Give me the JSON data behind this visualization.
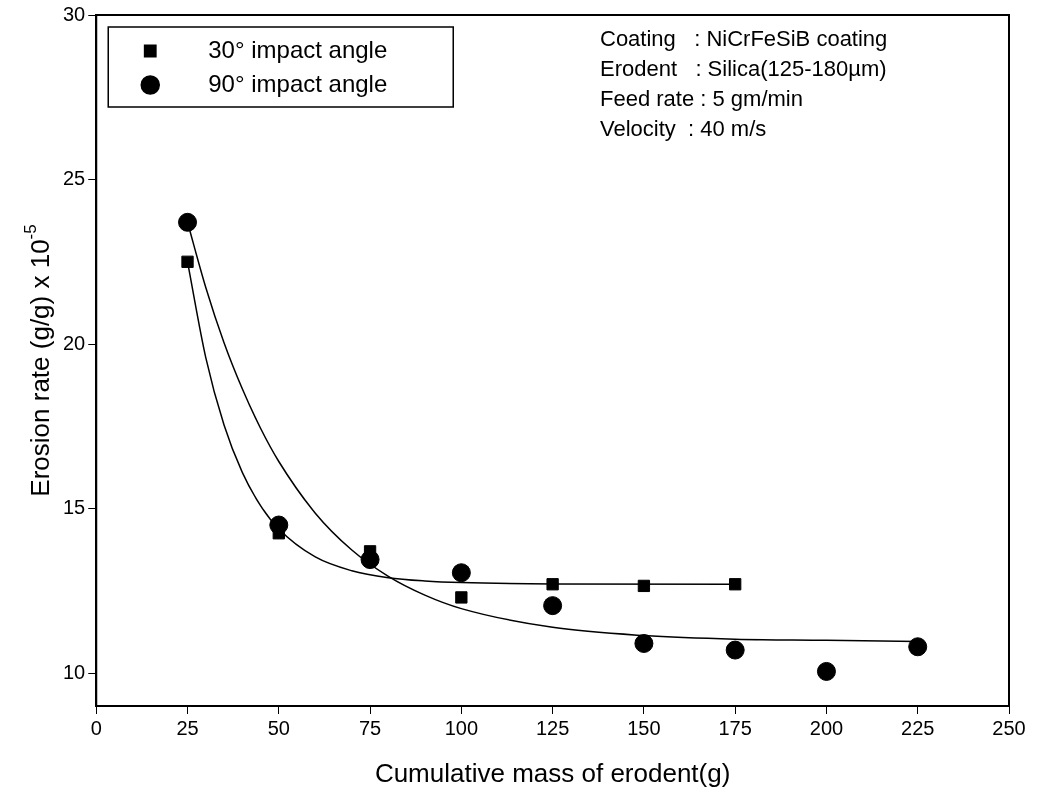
{
  "chart_data": {
    "type": "scatter",
    "xlabel": "Cumulative mass of erodent(g)",
    "ylabel": "Erosion rate (g/g) x 10$^{-5}$",
    "xlim": [
      0,
      250
    ],
    "xticks": [
      0,
      25,
      50,
      75,
      100,
      125,
      150,
      175,
      200,
      225,
      250
    ],
    "ylim": [
      9,
      30
    ],
    "yticks": [
      10,
      15,
      20,
      25,
      30
    ],
    "grid": false,
    "legend": "top left",
    "annotations": [
      "Coating   : NiCrFeSiB coating",
      "Erodent   : Silica(125-180µm)",
      "Feed rate : 5 gm/min",
      "Velocity  : 40 m/s"
    ],
    "series": [
      {
        "name": "30° impact angle",
        "marker": "square",
        "color": "#000000",
        "x": [
          25,
          50,
          75,
          100,
          125,
          150,
          175
        ],
        "values": [
          22.5,
          14.25,
          13.7,
          12.3,
          12.7,
          12.65,
          12.7
        ]
      },
      {
        "name": "90° impact angle",
        "marker": "circle",
        "color": "#000000",
        "x": [
          25,
          50,
          75,
          100,
          125,
          150,
          175,
          200,
          225
        ],
        "values": [
          23.7,
          14.5,
          13.45,
          13.05,
          12.05,
          10.9,
          10.7,
          10.05,
          10.8
        ]
      },
      {
        "type": "line",
        "marker": "none",
        "color": "#000000",
        "x": [
          25,
          30,
          35,
          40,
          45,
          50,
          60,
          70,
          80,
          90,
          100,
          125,
          175
        ],
        "values": [
          22.5,
          19.59,
          17.54,
          16.1,
          15.09,
          14.38,
          13.53,
          13.11,
          12.9,
          12.8,
          12.75,
          12.71,
          12.7
        ]
      },
      {
        "type": "line",
        "marker": "none",
        "color": "#000000",
        "x": [
          25,
          30,
          35,
          40,
          45,
          50,
          60,
          70,
          80,
          90,
          100,
          125,
          150,
          175,
          200,
          225
        ],
        "values": [
          23.7,
          21.72,
          20.04,
          18.64,
          17.44,
          16.43,
          14.86,
          13.74,
          12.94,
          12.37,
          11.96,
          11.39,
          11.14,
          11.03,
          11,
          10.96
        ]
      }
    ]
  }
}
